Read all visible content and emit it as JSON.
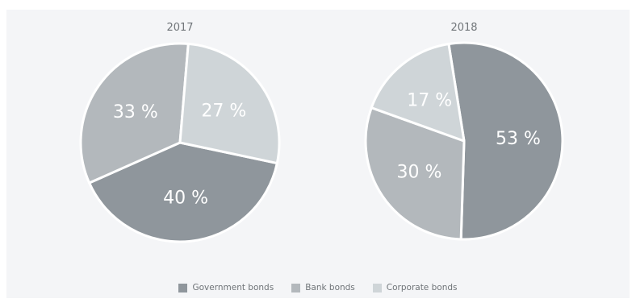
{
  "chart_data": [
    {
      "type": "pie",
      "title": "2017",
      "categories": [
        "Government bonds",
        "Bank bonds",
        "Corporate bonds"
      ],
      "values": [
        40,
        33,
        27
      ],
      "labels": [
        "40 %",
        "33 %",
        "27 %"
      ]
    },
    {
      "type": "pie",
      "title": "2018",
      "categories": [
        "Government bonds",
        "Bank bonds",
        "Corporate bonds"
      ],
      "values": [
        53,
        30,
        17
      ],
      "labels": [
        "53 %",
        "30 %",
        "17 %"
      ]
    }
  ],
  "legend": {
    "position": "bottom-center",
    "items": [
      {
        "label": "Government bonds",
        "color": "#8f969c"
      },
      {
        "label": "Bank bonds",
        "color": "#b3b8bc"
      },
      {
        "label": "Corporate bonds",
        "color": "#cfd5d8"
      }
    ]
  }
}
